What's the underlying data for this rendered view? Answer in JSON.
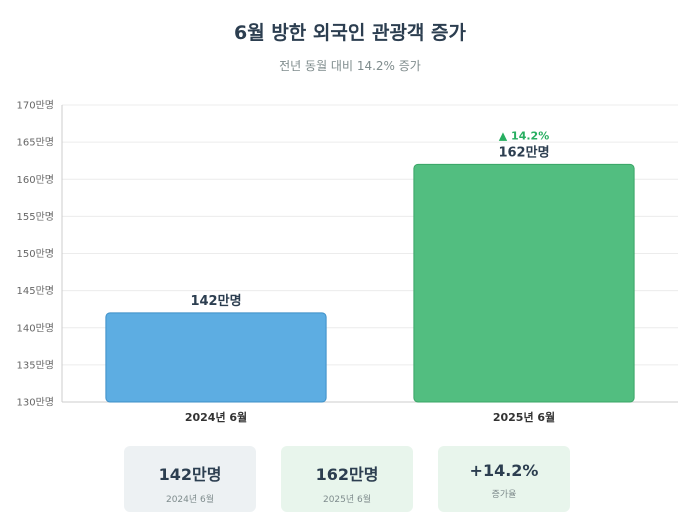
{
  "header": {
    "title": "6월 방한 외국인 관광객 증가",
    "subtitle": "전년 동월 대비 14.2% 증가"
  },
  "chart_data": {
    "type": "bar",
    "categories": [
      "2024년 6월",
      "2025년 6월"
    ],
    "values": [
      142,
      162
    ],
    "value_labels": [
      "142만명",
      "162만명"
    ],
    "unit": "만명",
    "ylim": [
      130,
      170
    ],
    "yticks": [
      130,
      135,
      140,
      145,
      150,
      155,
      160,
      165,
      170
    ],
    "grid": true,
    "legend": "none",
    "annotation": "▲ 14.2%",
    "colors": [
      "#5dade2",
      "#52be80"
    ],
    "border_colors": [
      "#3d8fc7",
      "#3aa566"
    ],
    "annotation_color": "#27ae60"
  },
  "summary": {
    "cards": [
      {
        "value": "142만명",
        "label": "2024년 6월"
      },
      {
        "value": "162만명",
        "label": "2025년 6월"
      },
      {
        "value": "+14.2%",
        "label": "증가율"
      }
    ]
  }
}
